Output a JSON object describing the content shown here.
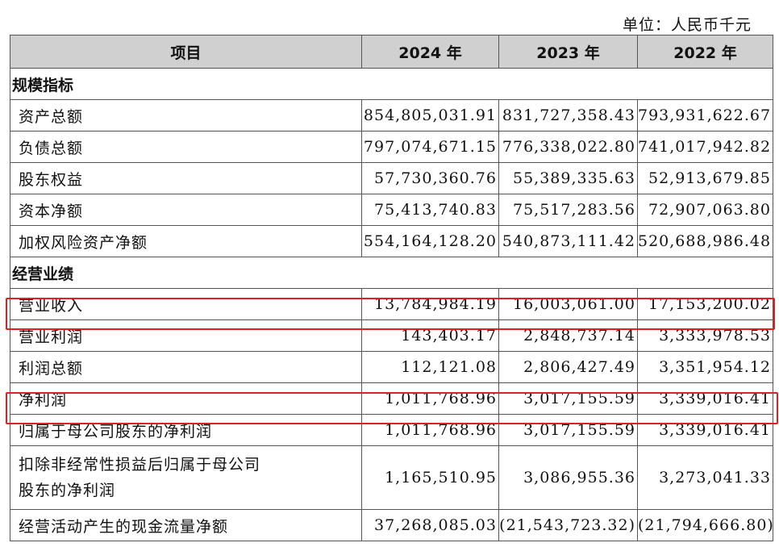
{
  "unit": "单位：人民币千元",
  "header": [
    "项目",
    "2024 年",
    "2023 年",
    "2022 年"
  ],
  "sections": [
    {
      "title": "规模指标",
      "rows": [
        {
          "label": "资产总额",
          "v": [
            "854,805,031.91",
            "831,727,358.43",
            "793,931,622.67"
          ]
        },
        {
          "label": "负债总额",
          "v": [
            "797,074,671.15",
            "776,338,022.80",
            "741,017,942.82"
          ]
        },
        {
          "label": "股东权益",
          "v": [
            "57,730,360.76",
            "55,389,335.63",
            "52,913,679.85"
          ]
        },
        {
          "label": "资本净额",
          "v": [
            "75,413,740.83",
            "75,517,283.56",
            "72,907,063.80"
          ]
        },
        {
          "label": "加权风险资产净额",
          "v": [
            "554,164,128.20",
            "540,873,111.42",
            "520,688,986.48"
          ]
        }
      ]
    },
    {
      "title": "经营业绩",
      "rows": [
        {
          "label": "营业收入",
          "v": [
            "13,784,984.19",
            "16,003,061.00",
            "17,153,200.02"
          ],
          "highlighted": true
        },
        {
          "label": "营业利润",
          "v": [
            "143,403.17",
            "2,848,737.14",
            "3,333,978.53"
          ]
        },
        {
          "label": "利润总额",
          "v": [
            "112,121.08",
            "2,806,427.49",
            "3,351,954.12"
          ]
        },
        {
          "label": "净利润",
          "v": [
            "1,011,768.96",
            "3,017,155.59",
            "3,339,016.41"
          ],
          "highlighted": true
        },
        {
          "label": "归属于母公司股东的净利润",
          "v": [
            "1,011,768.96",
            "3,017,155.59",
            "3,339,016.41"
          ]
        },
        {
          "label1": "扣除非经常性损益后归属于母公司",
          "label2": "股东的净利润",
          "v": [
            "1,165,510.95",
            "3,086,955.36",
            "3,273,041.33"
          ]
        },
        {
          "label": "经营活动产生的现金流量净额",
          "v": [
            "37,268,085.03",
            "(21,543,723.32)",
            "(21,794,666.80)"
          ]
        }
      ]
    }
  ],
  "highlight_color": "#e02020"
}
